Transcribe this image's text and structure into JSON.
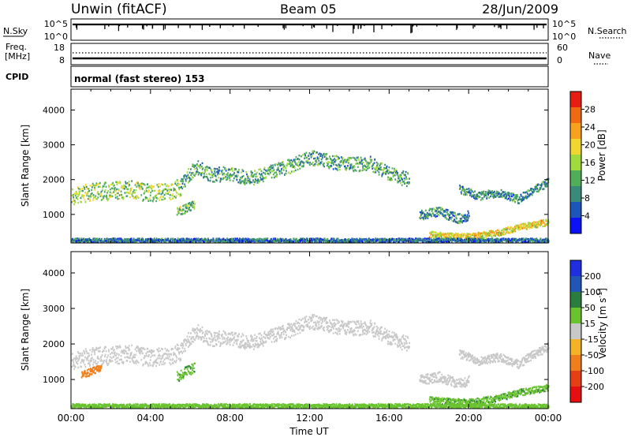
{
  "header": {
    "station": "Unwin (fitACF)",
    "beam": "Beam 05",
    "date": "28/Jun/2009"
  },
  "summary": {
    "nsky_label": "N.Sky",
    "nsky_ticks": [
      "10^5",
      "10^0"
    ],
    "nsearch_label": "N.Search",
    "nsearch_ticks": [
      "10^5",
      "10^0"
    ],
    "freq_label": "Freq.",
    "freq_unit": "[MHz]",
    "freq_ticks": [
      "18",
      "8"
    ],
    "nave_label": "Nave",
    "nave_ticks": [
      "60",
      "0"
    ],
    "cpid_label": "CPID",
    "cpid_text": "normal (fast stereo) 153"
  },
  "colors": {
    "power": [
      "#0b13f5",
      "#1d55b9",
      "#3a8a79",
      "#4fae57",
      "#9fdb3d",
      "#f1d531",
      "#f7a11d",
      "#ef6a13",
      "#e71d12"
    ],
    "velocity": [
      "#1f2fe0",
      "#2056b5",
      "#2a7d3c",
      "#69c32f",
      "#c8c8c8",
      "#f3b324",
      "#ef7e1d",
      "#e53f15",
      "#e50f12"
    ]
  },
  "chart_data": [
    {
      "type": "heatmap",
      "title": "",
      "ylabel": "Slant Range [km]",
      "xlabel": "",
      "xlim": [
        "00:00",
        "24:00"
      ],
      "ylim": [
        180,
        4600
      ],
      "yticks": [
        1000,
        2000,
        3000,
        4000
      ],
      "colorbar": {
        "label": "Power [dB]",
        "range": [
          0,
          32
        ],
        "ticks": [
          4,
          8,
          12,
          16,
          20,
          24,
          28
        ]
      },
      "scatter_bands": [
        {
          "t": [
            0.0,
            1.0,
            2.0,
            3.0,
            4.0,
            5.0,
            5.5
          ],
          "range": [
            1560,
            1650,
            1700,
            1740,
            1630,
            1700,
            1790
          ],
          "width": 520,
          "value": 14
        },
        {
          "t": [
            5.5,
            6.3,
            7.0,
            8.0,
            9.0,
            10.0,
            11.0,
            12.0,
            13.0,
            14.0,
            15.0,
            16.0,
            17.0
          ],
          "range": [
            1900,
            2400,
            2150,
            2200,
            2050,
            2250,
            2400,
            2650,
            2550,
            2450,
            2500,
            2200,
            2000
          ],
          "width": 420,
          "value": 10
        },
        {
          "t": [
            5.3,
            5.8,
            6.2
          ],
          "range": [
            1100,
            1200,
            1300
          ],
          "width": 260,
          "value": 12
        },
        {
          "t": [
            17.5,
            18.5,
            19.5,
            20.0
          ],
          "range": [
            1000,
            1100,
            900,
            1000
          ],
          "width": 280,
          "value": 8
        },
        {
          "t": [
            19.5,
            20.5,
            21.5,
            22.5,
            23.0,
            24.0
          ],
          "range": [
            1750,
            1550,
            1650,
            1450,
            1650,
            1950
          ],
          "width": 240,
          "value": 8
        },
        {
          "t": [
            18.0,
            19.0,
            20.0,
            21.5,
            22.5,
            23.5,
            24.0
          ],
          "range": [
            450,
            400,
            380,
            500,
            650,
            750,
            800
          ],
          "width": 180,
          "value": 18
        },
        {
          "t": [
            0.0,
            8.0,
            16.0,
            24.0
          ],
          "range": [
            280,
            280,
            280,
            280
          ],
          "width": 110,
          "value": 6
        }
      ]
    },
    {
      "type": "heatmap",
      "title": "",
      "ylabel": "Slant Range [km]",
      "xlabel": "Time UT",
      "xlim": [
        "00:00",
        "24:00"
      ],
      "ylim": [
        180,
        4600
      ],
      "yticks": [
        1000,
        2000,
        3000,
        4000
      ],
      "xticks": [
        "00:00",
        "04:00",
        "08:00",
        "12:00",
        "16:00",
        "20:00",
        "00:00"
      ],
      "colorbar": {
        "label": "Velocity [m s^-1]",
        "range": [
          -250,
          250
        ],
        "ticks": [
          200,
          100,
          50,
          15,
          -15,
          -50,
          -100,
          -200
        ]
      },
      "scatter_bands": [
        {
          "t": [
            0.0,
            1.0,
            2.0,
            3.0,
            4.0,
            5.0,
            5.5
          ],
          "range": [
            1560,
            1650,
            1700,
            1740,
            1630,
            1700,
            1790
          ],
          "width": 520,
          "value": 0
        },
        {
          "t": [
            5.5,
            6.3,
            7.0,
            8.0,
            9.0,
            10.0,
            11.0,
            12.0,
            13.0,
            14.0,
            15.0,
            16.0,
            17.0
          ],
          "range": [
            1900,
            2400,
            2150,
            2200,
            2050,
            2250,
            2400,
            2650,
            2550,
            2450,
            2500,
            2200,
            2000
          ],
          "width": 420,
          "value": 0
        },
        {
          "t": [
            0.5,
            1.5
          ],
          "range": [
            1150,
            1350
          ],
          "width": 200,
          "value": -80
        },
        {
          "t": [
            5.3,
            5.8,
            6.2
          ],
          "range": [
            1100,
            1250,
            1350
          ],
          "width": 300,
          "value": 40
        },
        {
          "t": [
            17.5,
            18.5,
            19.5,
            20.0
          ],
          "range": [
            1000,
            1100,
            900,
            1000
          ],
          "width": 280,
          "value": 0
        },
        {
          "t": [
            19.5,
            20.5,
            21.5,
            22.5,
            23.0,
            24.0
          ],
          "range": [
            1750,
            1550,
            1650,
            1450,
            1650,
            1950
          ],
          "width": 240,
          "value": 0
        },
        {
          "t": [
            18.0,
            19.0,
            20.0,
            21.5,
            22.5,
            23.5,
            24.0
          ],
          "range": [
            450,
            400,
            380,
            500,
            650,
            750,
            800
          ],
          "width": 180,
          "value": 40
        },
        {
          "t": [
            0.0,
            8.0,
            16.0,
            24.0
          ],
          "range": [
            280,
            280,
            280,
            280
          ],
          "width": 110,
          "value": 30
        }
      ]
    }
  ]
}
